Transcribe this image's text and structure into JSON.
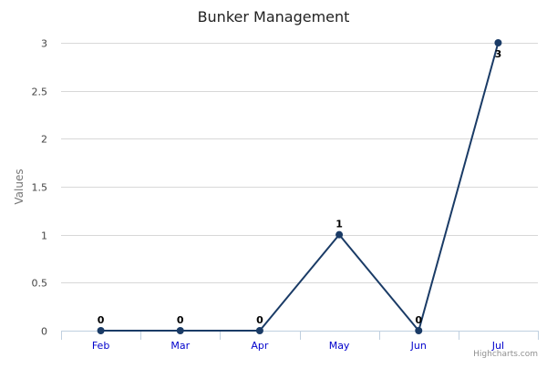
{
  "chart_data": {
    "type": "line",
    "title": "Bunker Management",
    "ylabel": "Values",
    "xlabel": "",
    "categories": [
      "Feb",
      "Mar",
      "Apr",
      "May",
      "Jun",
      "Jul"
    ],
    "series": [
      {
        "values": [
          0,
          0,
          0,
          1,
          0,
          3
        ]
      }
    ],
    "ylim": [
      0,
      3
    ],
    "yticks": [
      "0",
      "0.5",
      "1",
      "1.5",
      "2",
      "2.5",
      "3"
    ],
    "ytick_values": [
      0,
      0.5,
      1,
      1.5,
      2,
      2.5,
      3
    ],
    "data_labels": [
      "0",
      "0",
      "0",
      "1",
      "0",
      "3"
    ],
    "grid": true,
    "legend": "none"
  },
  "colors": {
    "line": "#1a3b66",
    "point": "#1a3b66",
    "grid": "#d8d8d8",
    "axis": "#c0d0e0",
    "xtick_label": "#0000cc",
    "ytick_label": "#444444",
    "title": "#222222",
    "ylabel": "#777777",
    "data_label": "#000000"
  },
  "credits": "Highcharts.com"
}
